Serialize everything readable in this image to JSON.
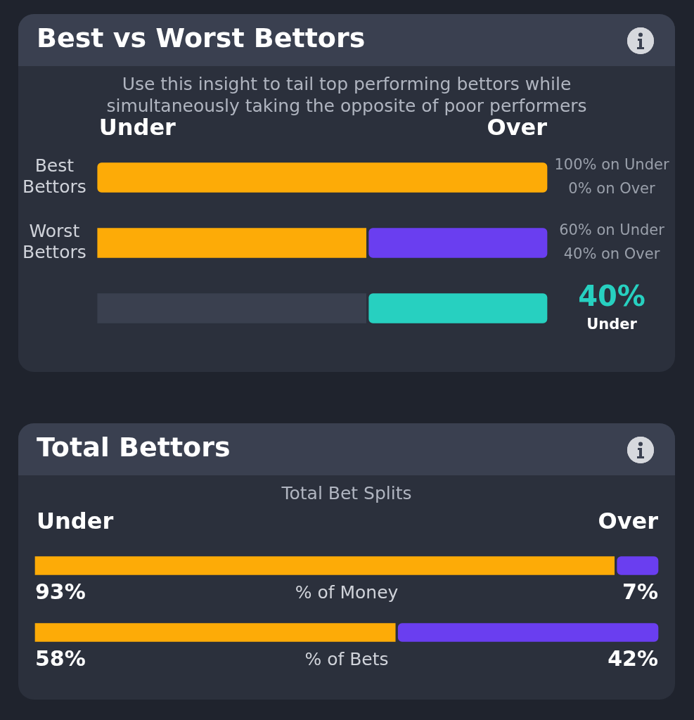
{
  "chart_data": [
    {
      "type": "bar",
      "title": "Best vs Worst Bettors",
      "subtitle": "Use this insight to tail top performing bettors while simultaneously taking the opposite of poor performers",
      "categories": [
        "Best Bettors",
        "Worst Bettors",
        null
      ],
      "orientation": "horizontal",
      "stacked": true,
      "xlim": [
        0,
        100
      ],
      "legend": false,
      "grid": false,
      "tick_labels": "y",
      "series": [
        {
          "name": "Under",
          "colors": [
            "#fdab07",
            "#fdab07",
            "#3a404f"
          ],
          "values": [
            100,
            60,
            60
          ],
          "value_labels": [
            "100% on Under",
            "60% on Under",
            null
          ]
        },
        {
          "name": "Over",
          "colors": [
            "#6a3ef0",
            "#6a3ef0",
            "#27d0c0"
          ],
          "values": [
            0,
            40,
            40
          ],
          "value_labels": [
            "0% on Over",
            "40% on Over",
            "40%"
          ]
        }
      ],
      "annotations": [
        "Under"
      ]
    },
    {
      "type": "bar",
      "title": "Total Bettors",
      "subtitle": "Total Bet Splits",
      "categories": [
        "% of Money",
        "% of Bets"
      ],
      "orientation": "horizontal",
      "stacked": true,
      "xlim": [
        0,
        100
      ],
      "legend": false,
      "grid": false,
      "tick_labels": false,
      "series": [
        {
          "name": "Under",
          "color": "#fdab07",
          "values": [
            93,
            58
          ],
          "value_labels": [
            "93%",
            "58%"
          ]
        },
        {
          "name": "Over",
          "color": "#6a3ef0",
          "values": [
            7,
            42
          ],
          "value_labels": [
            "7%",
            "42%"
          ]
        }
      ]
    }
  ]
}
